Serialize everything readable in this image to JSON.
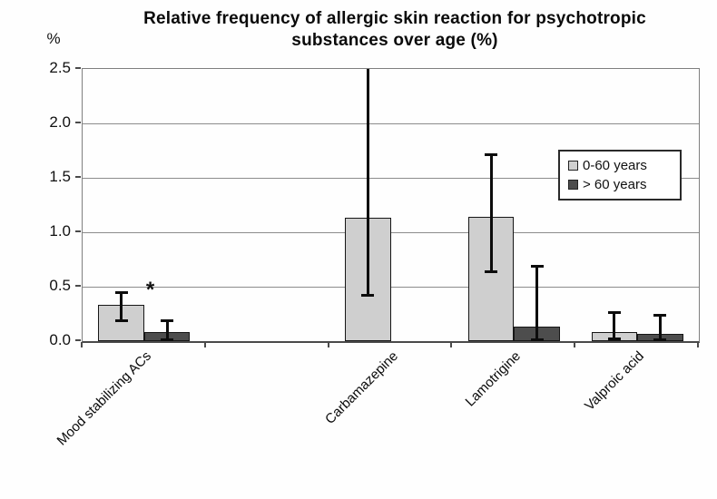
{
  "chart_data": {
    "type": "bar",
    "title_line1": "Relative frequency of allergic skin reaction for psychotropic",
    "title_line2": "substances over age (%)",
    "y_axis_unit_label": "%",
    "ylim": [
      0,
      2.5
    ],
    "ytick_labels": [
      "2.5",
      "2.0",
      "1.5",
      "1.0",
      "0.5",
      "0.0"
    ],
    "grid": true,
    "legend_position": "inside-upper-right",
    "categories": [
      "Mood stabilizing ACs",
      "",
      "Carbamazepine",
      "Lamotrigine",
      "Valproic acid"
    ],
    "series": [
      {
        "name": "0-60 years",
        "color": "#cfcfcf",
        "values": [
          0.33,
          null,
          1.13,
          1.14,
          0.08
        ],
        "error_low": [
          0.19,
          null,
          0.42,
          0.64,
          0.02
        ],
        "error_high": [
          0.45,
          null,
          2.5,
          1.71,
          0.26
        ],
        "error_high_clipped": [
          false,
          false,
          true,
          false,
          false
        ]
      },
      {
        "name": "> 60 years",
        "color": "#4d4d4d",
        "values": [
          0.08,
          null,
          null,
          0.13,
          0.07
        ],
        "error_low": [
          0.0,
          null,
          null,
          0.0,
          0.0
        ],
        "error_high": [
          0.19,
          null,
          null,
          0.69,
          0.24
        ],
        "error_high_clipped": [
          false,
          false,
          false,
          false,
          false
        ]
      }
    ],
    "annotation": {
      "text": "*",
      "category_index": 0,
      "series_index": 1
    }
  }
}
